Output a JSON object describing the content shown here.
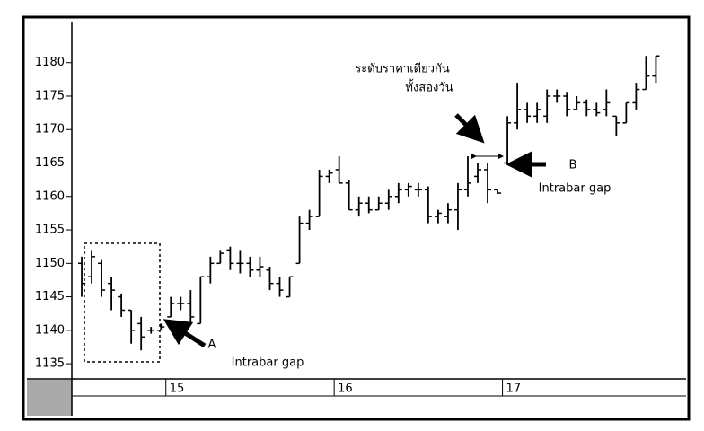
{
  "chart_data": {
    "type": "ohlc",
    "color": "#000000",
    "x": [
      0,
      1,
      2,
      3,
      4,
      5,
      6,
      7,
      8,
      9,
      10,
      11,
      12,
      13,
      14,
      15,
      16,
      17,
      18,
      19,
      20,
      21,
      22,
      23,
      24,
      25,
      26,
      27,
      28,
      29,
      30,
      31,
      32,
      33,
      34,
      35,
      36,
      37,
      38,
      39,
      40,
      41,
      42,
      43,
      44,
      45,
      46,
      47,
      48,
      49,
      50,
      51,
      52,
      53,
      54,
      55,
      56,
      57,
      58
    ],
    "open": [
      1150,
      1148,
      1150,
      1147,
      1145,
      1143,
      1141,
      1140,
      1140,
      1142,
      1144,
      1144,
      1141,
      1148,
      1150,
      1152,
      1150,
      1150,
      1149,
      1149,
      1147,
      1145,
      1150,
      1156,
      1157,
      1163,
      1164,
      1162,
      1158,
      1159,
      1158,
      1159,
      1160,
      1161,
      1161,
      1161,
      1157,
      1157,
      1158,
      1161,
      1163,
      1164,
      1161,
      1165,
      1171,
      1173,
      1172,
      1172,
      1175,
      1175,
      1173,
      1174,
      1173,
      1173,
      1172,
      1171,
      1174,
      1176,
      1178
    ],
    "high": [
      1151,
      1152,
      1150.5,
      1148,
      1145.5,
      1143,
      1142,
      1140.5,
      1141,
      1145,
      1145,
      1146,
      1148,
      1151,
      1152,
      1152.5,
      1152,
      1151,
      1151,
      1149.5,
      1148,
      1148,
      1157,
      1158,
      1164,
      1164,
      1166,
      1162.5,
      1160,
      1160,
      1160,
      1161,
      1162,
      1162,
      1162,
      1161.5,
      1158,
      1159,
      1162,
      1166,
      1165,
      1165,
      1161,
      1172,
      1177,
      1174,
      1174,
      1176,
      1176,
      1175.5,
      1175,
      1174.5,
      1174,
      1176,
      1172,
      1174,
      1177,
      1181,
      1181
    ],
    "low": [
      1145,
      1147,
      1145,
      1143,
      1142,
      1138,
      1137,
      1139.5,
      1140,
      1142,
      1143,
      1141,
      1141,
      1147,
      1150,
      1149,
      1148.5,
      1148,
      1148,
      1146,
      1145,
      1145,
      1150,
      1155,
      1157,
      1162,
      1162,
      1158,
      1157,
      1157.5,
      1158,
      1158,
      1159,
      1160,
      1160,
      1156,
      1156,
      1156,
      1155,
      1160,
      1162,
      1159,
      1160.5,
      1165,
      1170,
      1171,
      1171,
      1171,
      1174,
      1172,
      1173,
      1172,
      1172,
      1172,
      1169,
      1171,
      1173,
      1176,
      1177
    ],
    "close": [
      1147,
      1151,
      1146,
      1146,
      1143,
      1140,
      1139,
      1140,
      1140.5,
      1144,
      1144,
      1142,
      1148,
      1150,
      1151.5,
      1150,
      1150,
      1149,
      1149.5,
      1147,
      1146,
      1148,
      1156,
      1157,
      1163,
      1163.5,
      1162,
      1158,
      1159,
      1158,
      1159,
      1160,
      1161,
      1161.5,
      1161,
      1157,
      1157.5,
      1158,
      1161,
      1162,
      1164,
      1161,
      1160.5,
      1171,
      1173,
      1172,
      1173,
      1175,
      1175,
      1173,
      1174,
      1173,
      1172.5,
      1174,
      1171,
      1174,
      1176,
      1178,
      1181
    ],
    "xlim": [
      -1,
      60.5
    ],
    "xticks": [
      {
        "value": 8.5,
        "label": "15"
      },
      {
        "value": 25.5,
        "label": "16"
      },
      {
        "value": 42.5,
        "label": "17"
      }
    ],
    "ylim": [
      1133,
      1186
    ],
    "yticks": [
      1135,
      1140,
      1145,
      1150,
      1155,
      1160,
      1165,
      1170,
      1175,
      1180
    ],
    "annotations": [
      "ระดับราคาเดียวกัน",
      "ทั้งสองวัน",
      "A",
      "Intrabar gap",
      "B",
      "Intrabar gap"
    ]
  }
}
